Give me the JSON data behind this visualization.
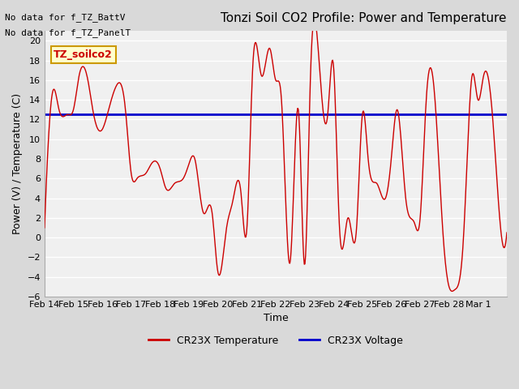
{
  "title": "Tonzi Soil CO2 Profile: Power and Temperature",
  "ylabel": "Power (V) / Temperature (C)",
  "xlabel": "Time",
  "ylim": [
    -6,
    21
  ],
  "yticks": [
    -6,
    -4,
    -2,
    0,
    2,
    4,
    6,
    8,
    10,
    12,
    14,
    16,
    18,
    20
  ],
  "annotation_lines": [
    "No data for f_TZ_BattV",
    "No data for f_TZ_PanelT"
  ],
  "legend_box_label": "TZ_soilco2",
  "legend_box_color": "#ffffcc",
  "legend_box_edge": "#cc9900",
  "legend_box_text": "#cc0000",
  "voltage_value": 12.5,
  "voltage_color": "#0000cc",
  "temp_color": "#cc0000",
  "background_color": "#e8e8e8",
  "plot_bg_color": "#f0f0f0",
  "x_tick_labels": [
    "Feb 14",
    "Feb 15",
    "Feb 16",
    "Feb 17",
    "Feb 18",
    "Feb 19",
    "Feb 20",
    "Feb 21",
    "Feb 22",
    "Feb 23",
    "Feb 24",
    "Feb 25",
    "Feb 26",
    "Feb 27",
    "Feb 28",
    "Mar 1"
  ],
  "n_days": 16
}
